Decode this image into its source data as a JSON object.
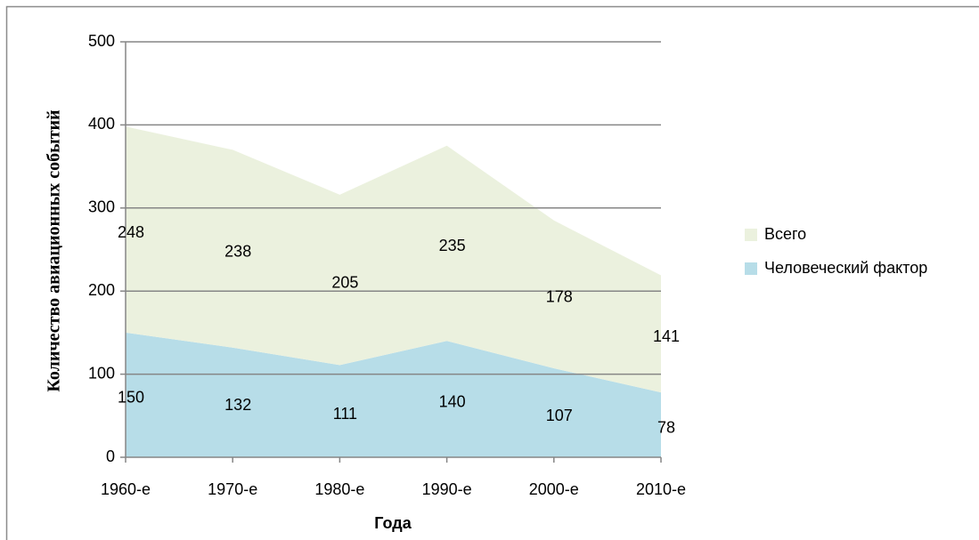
{
  "chart_data": {
    "type": "stacked_area",
    "x_label": "Года",
    "y_label": "Количество авиационных событий",
    "categories": [
      "1960-е",
      "1970-е",
      "1980-е",
      "1990-е",
      "2000-е",
      "2010-е"
    ],
    "series": [
      {
        "name": "Человеческий фактор",
        "color": "#b7dde8",
        "values": [
          150,
          132,
          111,
          140,
          107,
          78
        ]
      },
      {
        "name": "Всего",
        "color": "#ebf1de",
        "values": [
          248,
          238,
          205,
          235,
          178,
          141
        ]
      }
    ],
    "ylim": [
      0,
      500
    ],
    "yticks": [
      0,
      100,
      200,
      300,
      400,
      500
    ],
    "grid": true,
    "legend": "right"
  }
}
